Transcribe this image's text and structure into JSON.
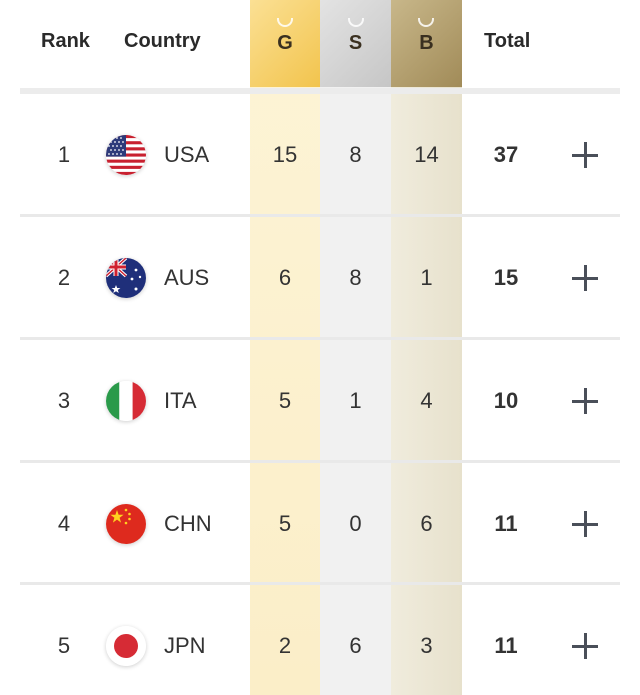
{
  "header": {
    "rank": "Rank",
    "country": "Country",
    "gold": "G",
    "silver": "S",
    "bronze": "B",
    "total": "Total"
  },
  "rows": [
    {
      "rank": "1",
      "code": "USA",
      "flag": "usa-flag-icon",
      "gold": "15",
      "silver": "8",
      "bronze": "14",
      "total": "37"
    },
    {
      "rank": "2",
      "code": "AUS",
      "flag": "aus-flag-icon",
      "gold": "6",
      "silver": "8",
      "bronze": "1",
      "total": "15"
    },
    {
      "rank": "3",
      "code": "ITA",
      "flag": "ita-flag-icon",
      "gold": "5",
      "silver": "1",
      "bronze": "4",
      "total": "10"
    },
    {
      "rank": "4",
      "code": "CHN",
      "flag": "chn-flag-icon",
      "gold": "5",
      "silver": "0",
      "bronze": "6",
      "total": "11"
    },
    {
      "rank": "5",
      "code": "JPN",
      "flag": "jpn-flag-icon",
      "gold": "2",
      "silver": "6",
      "bronze": "3",
      "total": "11"
    }
  ],
  "colors": {
    "gold": "#f2c44d",
    "silver": "#c6c6c6",
    "bronze": "#a18b58"
  }
}
